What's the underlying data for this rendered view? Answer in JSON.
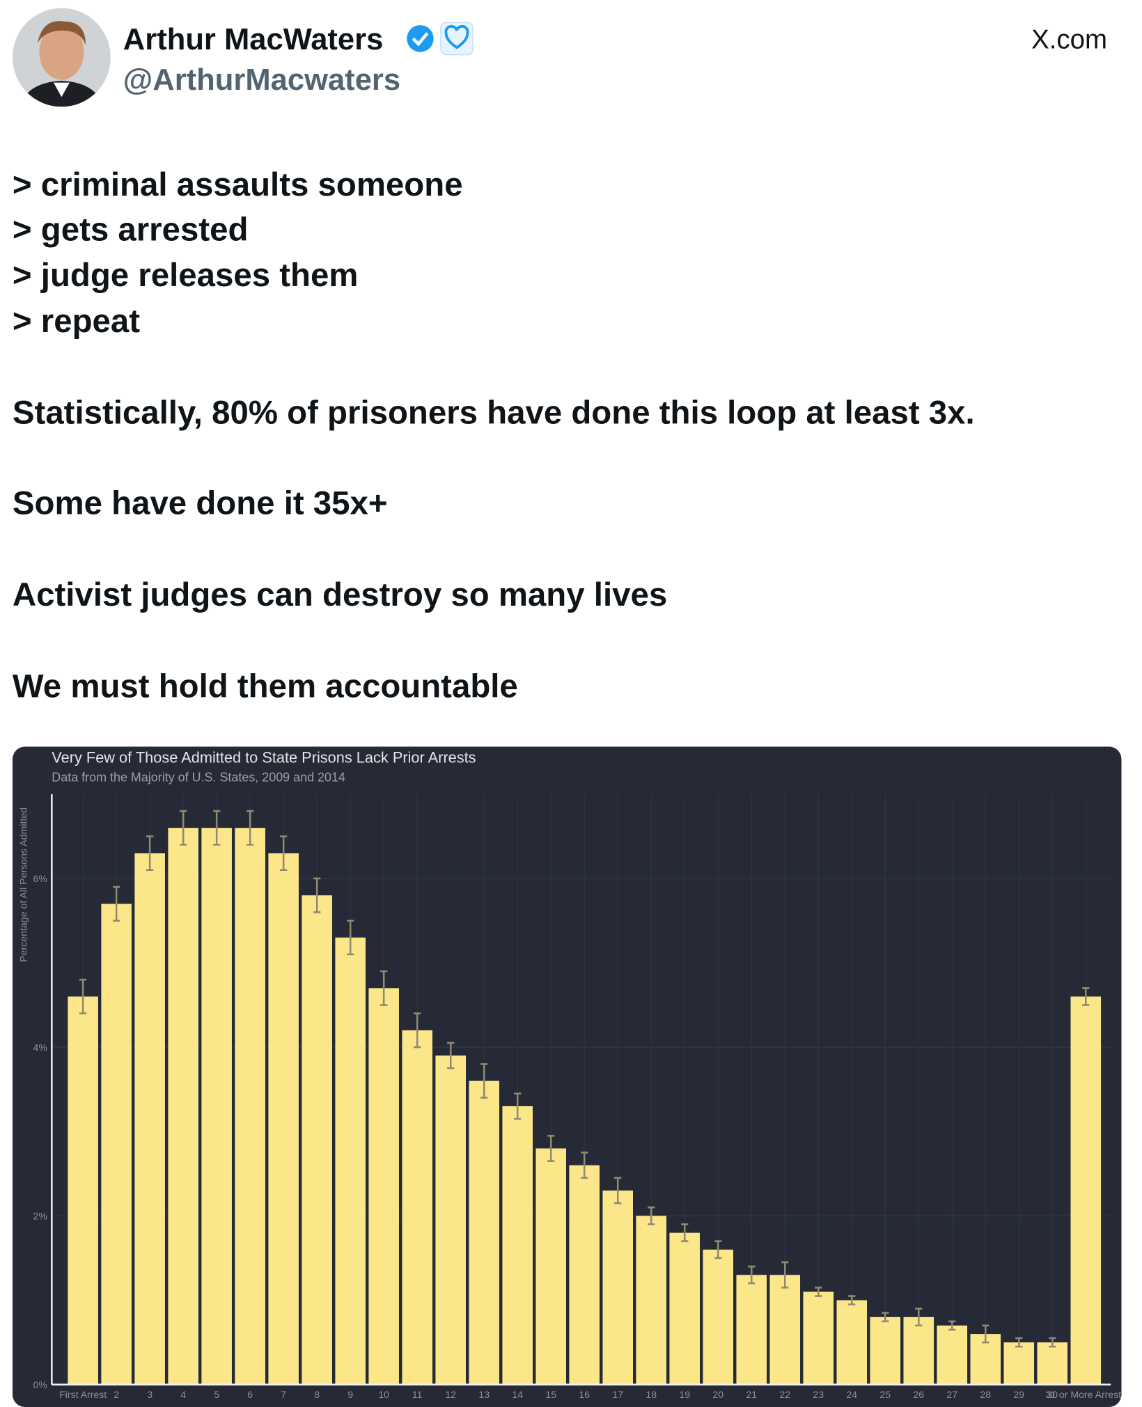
{
  "header": {
    "name": "Arthur MacWaters",
    "handle": "@ArthurMacwaters",
    "site": "X.com"
  },
  "body": [
    "> criminal assaults someone",
    "> gets arrested",
    "> judge releases them",
    "> repeat",
    "Statistically, 80% of prisoners have done this loop at least 3x.",
    "Some have done it 35x+",
    "Activist judges can destroy so many lives",
    "We must hold them accountable"
  ],
  "chart_data": {
    "type": "bar",
    "title": "Very Few of Those Admitted to State Prisons Lack Prior Arrests",
    "subtitle": "Data from the Majority of U.S. States, 2009 and 2014",
    "y_label": "Percentage of All Persons Admitted",
    "categories": [
      "First Arrest",
      "2",
      "3",
      "4",
      "5",
      "6",
      "7",
      "8",
      "9",
      "10",
      "11",
      "12",
      "13",
      "14",
      "15",
      "16",
      "17",
      "18",
      "19",
      "20",
      "21",
      "22",
      "23",
      "24",
      "25",
      "26",
      "27",
      "28",
      "29",
      "30",
      "31 or More Arrests"
    ],
    "values": [
      4.6,
      5.7,
      6.3,
      6.6,
      6.6,
      6.6,
      6.3,
      5.8,
      5.3,
      4.7,
      4.2,
      3.9,
      3.6,
      3.3,
      2.8,
      2.6,
      2.3,
      2.0,
      1.8,
      1.6,
      1.3,
      1.3,
      1.1,
      1.0,
      0.8,
      0.8,
      0.7,
      0.6,
      0.5,
      0.5,
      4.6
    ],
    "errors": [
      0.2,
      0.2,
      0.2,
      0.2,
      0.2,
      0.2,
      0.2,
      0.2,
      0.2,
      0.2,
      0.2,
      0.15,
      0.2,
      0.15,
      0.15,
      0.15,
      0.15,
      0.1,
      0.1,
      0.1,
      0.1,
      0.15,
      0.05,
      0.05,
      0.05,
      0.1,
      0.05,
      0.1,
      0.05,
      0.05,
      0.1
    ],
    "color": "#fbe78a",
    "ylim": [
      0,
      7
    ],
    "yticks": [
      {
        "value": 0,
        "label": "0%"
      },
      {
        "value": 2,
        "label": "2%"
      },
      {
        "value": 4,
        "label": "4%"
      },
      {
        "value": 6,
        "label": "6%"
      }
    ],
    "grid": true
  }
}
